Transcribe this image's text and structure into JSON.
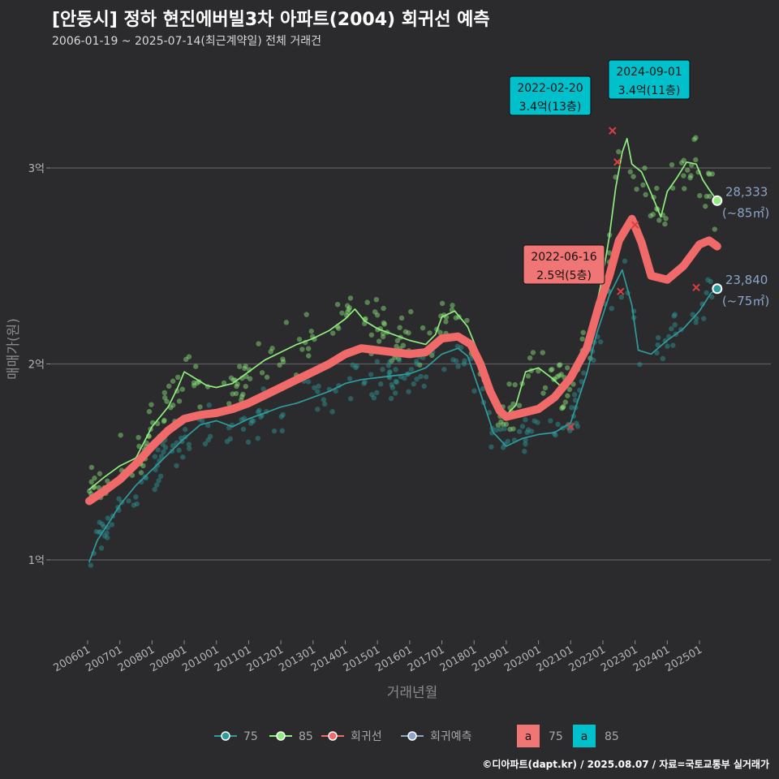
{
  "title": "[안동시] 정하 현진에버빌3차 아파트(2004) 회귀선 예측",
  "subtitle": "2006-01-19 ~ 2025-07-14(최근계약일) 전체 거래건",
  "credit": "©디아파트(dapt.kr) / 2025.08.07 / 자료=국토교통부 실거래가",
  "colors": {
    "background": "#2b2b2e",
    "s75": "#2e9c9c",
    "s85": "#90ee7e",
    "regression": "#f06a6a",
    "forecast": "#8ba4c8",
    "ann85": "#00c0cc",
    "ann75": "#f07575"
  },
  "chart_data": {
    "type": "line",
    "xlabel": "거래년월",
    "ylabel": "매매가(원)",
    "x_ticks": [
      "200601",
      "200701",
      "200801",
      "200901",
      "201001",
      "201101",
      "201201",
      "201301",
      "201401",
      "201501",
      "201601",
      "201701",
      "201801",
      "201901",
      "202001",
      "202101",
      "202201",
      "202301",
      "202401",
      "202501"
    ],
    "y_ticks": [
      {
        "value": 10000,
        "label": "1억"
      },
      {
        "value": 20000,
        "label": "2억"
      },
      {
        "value": 30000,
        "label": "3억"
      }
    ],
    "ylim": [
      6000,
      35000
    ],
    "xlim": [
      2005.5,
      2026.2
    ],
    "grid": "horizontal",
    "series": [
      {
        "name": "75",
        "key": "s75",
        "points": [
          [
            2006.05,
            9900
          ],
          [
            2006.3,
            11000
          ],
          [
            2006.7,
            12000
          ],
          [
            2007.0,
            12800
          ],
          [
            2007.5,
            13800
          ],
          [
            2008.0,
            14600
          ],
          [
            2008.5,
            15400
          ],
          [
            2009.0,
            16200
          ],
          [
            2009.5,
            16900
          ],
          [
            2010.0,
            17100
          ],
          [
            2010.5,
            16800
          ],
          [
            2011.0,
            17200
          ],
          [
            2011.5,
            17500
          ],
          [
            2012.0,
            17800
          ],
          [
            2012.5,
            18000
          ],
          [
            2013.0,
            18300
          ],
          [
            2013.5,
            18600
          ],
          [
            2014.0,
            19000
          ],
          [
            2014.5,
            19200
          ],
          [
            2015.0,
            19300
          ],
          [
            2015.5,
            19400
          ],
          [
            2016.0,
            19500
          ],
          [
            2016.5,
            19800
          ],
          [
            2017.0,
            20500
          ],
          [
            2017.5,
            20800
          ],
          [
            2017.8,
            20400
          ],
          [
            2018.2,
            18500
          ],
          [
            2018.6,
            16500
          ],
          [
            2019.0,
            15800
          ],
          [
            2019.5,
            16200
          ],
          [
            2020.0,
            16400
          ],
          [
            2020.5,
            16500
          ],
          [
            2021.0,
            17000
          ],
          [
            2021.5,
            19500
          ],
          [
            2021.8,
            21500
          ],
          [
            2022.2,
            23500
          ],
          [
            2022.6,
            24800
          ],
          [
            2022.9,
            23000
          ],
          [
            2023.1,
            20700
          ],
          [
            2023.5,
            20500
          ],
          [
            2024.0,
            21200
          ],
          [
            2024.5,
            21800
          ],
          [
            2025.0,
            22700
          ],
          [
            2025.35,
            23600
          ],
          [
            2025.55,
            23840
          ]
        ]
      },
      {
        "name": "85",
        "key": "s85",
        "points": [
          [
            2006.05,
            13600
          ],
          [
            2006.5,
            14200
          ],
          [
            2007.0,
            14800
          ],
          [
            2007.5,
            15200
          ],
          [
            2008.0,
            16800
          ],
          [
            2008.5,
            17800
          ],
          [
            2008.8,
            18800
          ],
          [
            2009.0,
            19600
          ],
          [
            2009.3,
            19300
          ],
          [
            2009.7,
            18900
          ],
          [
            2010.0,
            18800
          ],
          [
            2010.5,
            19000
          ],
          [
            2011.0,
            19600
          ],
          [
            2011.5,
            20200
          ],
          [
            2012.0,
            20600
          ],
          [
            2012.5,
            21000
          ],
          [
            2013.0,
            21300
          ],
          [
            2013.5,
            21700
          ],
          [
            2014.0,
            22300
          ],
          [
            2014.3,
            22800
          ],
          [
            2014.6,
            22200
          ],
          [
            2015.0,
            21800
          ],
          [
            2015.5,
            21500
          ],
          [
            2016.0,
            21200
          ],
          [
            2016.5,
            21000
          ],
          [
            2016.8,
            21500
          ],
          [
            2017.0,
            22400
          ],
          [
            2017.4,
            22700
          ],
          [
            2017.8,
            21900
          ],
          [
            2018.2,
            20300
          ],
          [
            2018.6,
            18300
          ],
          [
            2019.0,
            17400
          ],
          [
            2019.3,
            17900
          ],
          [
            2019.6,
            19600
          ],
          [
            2020.0,
            19800
          ],
          [
            2020.4,
            19300
          ],
          [
            2020.8,
            18700
          ],
          [
            2021.2,
            19800
          ],
          [
            2021.6,
            21500
          ],
          [
            2022.0,
            24500
          ],
          [
            2022.2,
            26500
          ],
          [
            2022.4,
            29000
          ],
          [
            2022.6,
            30800
          ],
          [
            2022.75,
            31500
          ],
          [
            2022.9,
            30200
          ],
          [
            2023.2,
            29800
          ],
          [
            2023.5,
            28700
          ],
          [
            2023.8,
            27500
          ],
          [
            2024.0,
            28800
          ],
          [
            2024.3,
            29500
          ],
          [
            2024.6,
            30300
          ],
          [
            2024.9,
            30200
          ],
          [
            2025.1,
            29400
          ],
          [
            2025.3,
            28900
          ],
          [
            2025.55,
            28333
          ]
        ]
      },
      {
        "name": "회귀선",
        "key": "regression",
        "points": [
          [
            2006.05,
            13000
          ],
          [
            2006.5,
            13500
          ],
          [
            2007.0,
            14100
          ],
          [
            2007.5,
            14900
          ],
          [
            2008.0,
            15800
          ],
          [
            2008.5,
            16600
          ],
          [
            2009.0,
            17200
          ],
          [
            2009.5,
            17400
          ],
          [
            2010.0,
            17500
          ],
          [
            2010.5,
            17700
          ],
          [
            2011.0,
            18000
          ],
          [
            2011.5,
            18400
          ],
          [
            2012.0,
            18800
          ],
          [
            2012.5,
            19200
          ],
          [
            2013.0,
            19600
          ],
          [
            2013.5,
            20000
          ],
          [
            2014.0,
            20500
          ],
          [
            2014.5,
            20800
          ],
          [
            2015.0,
            20700
          ],
          [
            2015.5,
            20600
          ],
          [
            2016.0,
            20500
          ],
          [
            2016.5,
            20600
          ],
          [
            2017.0,
            21300
          ],
          [
            2017.5,
            21400
          ],
          [
            2017.9,
            21000
          ],
          [
            2018.2,
            20000
          ],
          [
            2018.5,
            18600
          ],
          [
            2018.8,
            17600
          ],
          [
            2019.0,
            17300
          ],
          [
            2019.5,
            17500
          ],
          [
            2020.0,
            17700
          ],
          [
            2020.5,
            18300
          ],
          [
            2021.0,
            19300
          ],
          [
            2021.5,
            20800
          ],
          [
            2021.9,
            23100
          ],
          [
            2022.2,
            24500
          ],
          [
            2022.5,
            26300
          ],
          [
            2022.9,
            27400
          ],
          [
            2023.2,
            26200
          ],
          [
            2023.5,
            24500
          ],
          [
            2024.0,
            24300
          ],
          [
            2024.5,
            25000
          ],
          [
            2025.0,
            26100
          ],
          [
            2025.3,
            26300
          ],
          [
            2025.55,
            26000
          ]
        ]
      }
    ],
    "annotations": [
      {
        "label": "2024-09-01",
        "value_text": "3.4억(11층)",
        "series": "85",
        "x": 2024.67,
        "y": 34000
      },
      {
        "label": "2022-02-20",
        "value_text": "3.4억(13층)",
        "series": "85",
        "x": 2022.14,
        "y": 34000
      },
      {
        "label": "2022-06-16",
        "value_text": "2.5억(5층)",
        "series": "75",
        "x": 2022.46,
        "y": 25000
      }
    ],
    "end_labels": [
      {
        "value": "28,333",
        "area": "(~85㎡)",
        "series": "85"
      },
      {
        "value": "23,840",
        "area": "(~75㎡)",
        "series": "75"
      }
    ],
    "legend": {
      "position": "bottom",
      "items": [
        {
          "label": "75",
          "key": "s75"
        },
        {
          "label": "85",
          "key": "s85"
        },
        {
          "label": "회귀선",
          "key": "regression"
        },
        {
          "label": "회귀예측",
          "key": "forecast"
        }
      ],
      "label_items": [
        {
          "glyph": "a",
          "label": "75",
          "key": "ann75"
        },
        {
          "glyph": "a",
          "label": "85",
          "key": "ann85"
        }
      ]
    }
  }
}
